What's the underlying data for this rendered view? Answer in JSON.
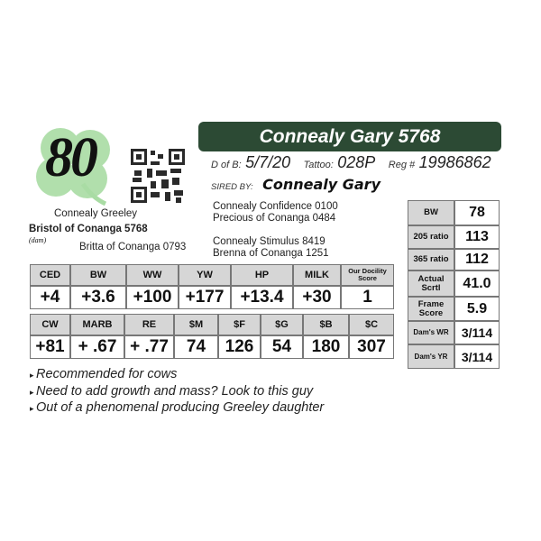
{
  "score": "80",
  "animal_name": "Connealy Gary 5768",
  "dob_label": "D of B:",
  "dob": "5/7/20",
  "tattoo_label": "Tattoo:",
  "tattoo": "028P",
  "reg_label": "Reg #",
  "reg": "19986862",
  "sired_by_label": "SIRED BY:",
  "sire": "Connealy Gary",
  "sire_pedigree": [
    "Connealy Confidence 0100",
    "Precious of Conanga 0484"
  ],
  "sire_dam_pedigree": [
    "Connealy Stimulus 8419",
    "Brenna of Conanga 1251"
  ],
  "dam_sire": "Connealy Greeley",
  "dam": "Bristol of Conanga 5768",
  "dam_label": "(dam)",
  "dam_dam": "Britta of Conanga 0793",
  "epd1": {
    "headers": [
      "CED",
      "BW",
      "WW",
      "YW",
      "HP",
      "MILK",
      "Our Docility Score"
    ],
    "values": [
      "+4",
      "+3.6",
      "+100",
      "+177",
      "+13.4",
      "+30",
      "1"
    ]
  },
  "epd2": {
    "headers": [
      "CW",
      "MARB",
      "RE",
      "$M",
      "$F",
      "$G",
      "$B",
      "$C"
    ],
    "values": [
      "+81",
      "+ .67",
      "+ .77",
      "74",
      "126",
      "54",
      "180",
      "307"
    ]
  },
  "stats": [
    {
      "label": "BW",
      "value": "78"
    },
    {
      "label": "205 ratio",
      "value": "113"
    },
    {
      "label": "365 ratio",
      "value": "112"
    },
    {
      "label": "Actual Scrtl",
      "value": "41.0"
    },
    {
      "label": "Frame Score",
      "value": "5.9"
    },
    {
      "label": "Dam's WR",
      "value": "3/114"
    },
    {
      "label": "Dam's YR",
      "value": "3/114"
    }
  ],
  "notes": [
    "Recommended for cows",
    "Need to add growth and mass? Look to this guy",
    "Out of a phenomenal producing Greeley daughter"
  ],
  "colors": {
    "title_bg": "#2c4a34",
    "clover": "#9fd79b",
    "header_cell": "#d6d6d6"
  }
}
